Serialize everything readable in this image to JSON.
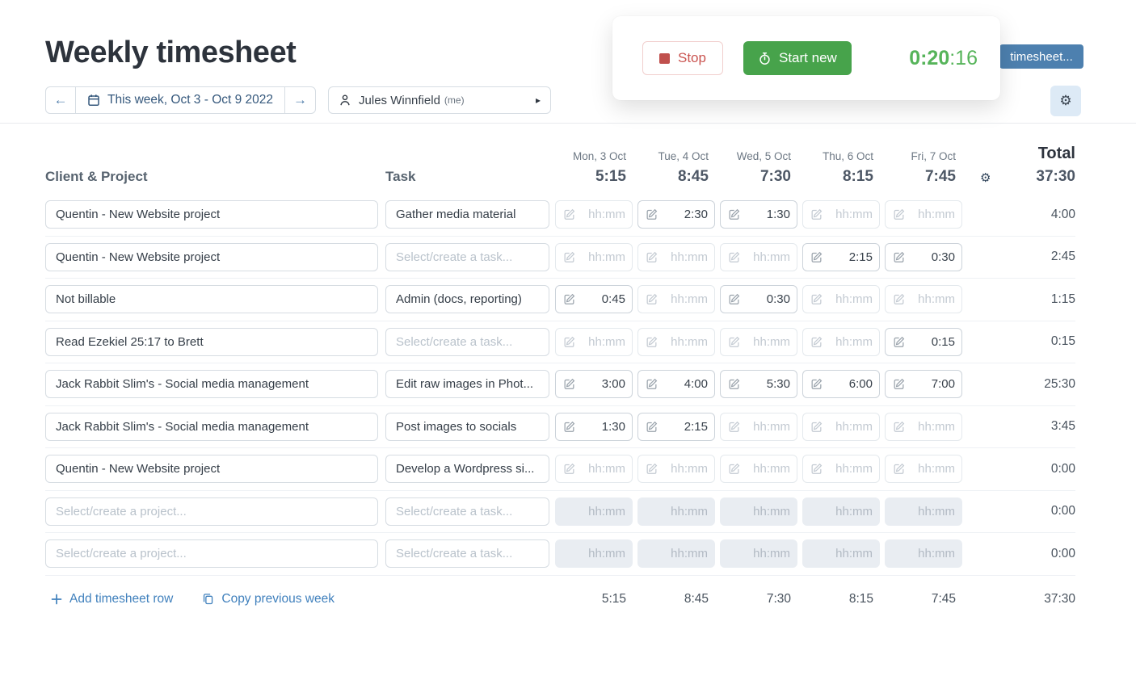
{
  "page": {
    "title": "Weekly timesheet"
  },
  "toolbar": {
    "prev_week_arrow": "←",
    "next_week_arrow": "→",
    "week_label": "This week, Oct 3 - Oct 9 2022",
    "user_name": "Jules Winnfield",
    "user_suffix": "(me)",
    "user_caret": "▸"
  },
  "timer": {
    "stop_label": "Stop",
    "start_new_label": "Start new",
    "time_main": "0:20",
    "time_seconds": ":16"
  },
  "partially_hidden_button": {
    "label": "timesheet..."
  },
  "settings": {
    "gear_glyph": "⚙"
  },
  "table": {
    "col_client_project": "Client & Project",
    "col_task": "Task",
    "col_total": "Total",
    "days": [
      {
        "label": "Mon, 3 Oct",
        "total": "5:15"
      },
      {
        "label": "Tue, 4 Oct",
        "total": "8:45"
      },
      {
        "label": "Wed, 5 Oct",
        "total": "7:30"
      },
      {
        "label": "Thu, 6 Oct",
        "total": "8:15"
      },
      {
        "label": "Fri, 7 Oct",
        "total": "7:45"
      }
    ],
    "grand_total": "37:30",
    "placeholder_project": "Select/create a project...",
    "placeholder_task": "Select/create a task...",
    "placeholder_time": "hh:mm",
    "rows": [
      {
        "project": "Quentin - New Website project",
        "task": "Gather media material",
        "times": [
          "",
          "2:30",
          "1:30",
          "",
          ""
        ],
        "total": "4:00",
        "disabled": false
      },
      {
        "project": "Quentin - New Website project",
        "task": "",
        "times": [
          "",
          "",
          "",
          "2:15",
          "0:30"
        ],
        "total": "2:45",
        "disabled": false
      },
      {
        "project": "Not billable",
        "task": "Admin (docs, reporting)",
        "times": [
          "0:45",
          "",
          "0:30",
          "",
          ""
        ],
        "total": "1:15",
        "disabled": false
      },
      {
        "project": "Read Ezekiel 25:17 to Brett",
        "task": "",
        "times": [
          "",
          "",
          "",
          "",
          "0:15"
        ],
        "total": "0:15",
        "disabled": false
      },
      {
        "project": "Jack Rabbit Slim's - Social media management",
        "task": "Edit raw images in Phot...",
        "times": [
          "3:00",
          "4:00",
          "5:30",
          "6:00",
          "7:00"
        ],
        "total": "25:30",
        "disabled": false
      },
      {
        "project": "Jack Rabbit Slim's - Social media management",
        "task": "Post images to socials",
        "times": [
          "1:30",
          "2:15",
          "",
          "",
          ""
        ],
        "total": "3:45",
        "disabled": false
      },
      {
        "project": "Quentin - New Website project",
        "task": "Develop a Wordpress si...",
        "times": [
          "",
          "",
          "",
          "",
          ""
        ],
        "total": "0:00",
        "disabled": false
      },
      {
        "project": "",
        "task": "",
        "times": [
          "",
          "",
          "",
          "",
          ""
        ],
        "total": "0:00",
        "disabled": true
      },
      {
        "project": "",
        "task": "",
        "times": [
          "",
          "",
          "",
          "",
          ""
        ],
        "total": "0:00",
        "disabled": true
      }
    ],
    "footer": {
      "add_row_label": "Add timesheet row",
      "copy_week_label": "Copy previous week",
      "day_totals": [
        "5:15",
        "8:45",
        "7:30",
        "8:15",
        "7:45"
      ],
      "grand_total": "37:30"
    }
  },
  "colors": {
    "accent_blue": "#4181bd",
    "steel_blue_button": "#4d80af",
    "green_button": "#47a34b",
    "timer_green": "#56b45a",
    "stop_red": "#ca5450"
  }
}
